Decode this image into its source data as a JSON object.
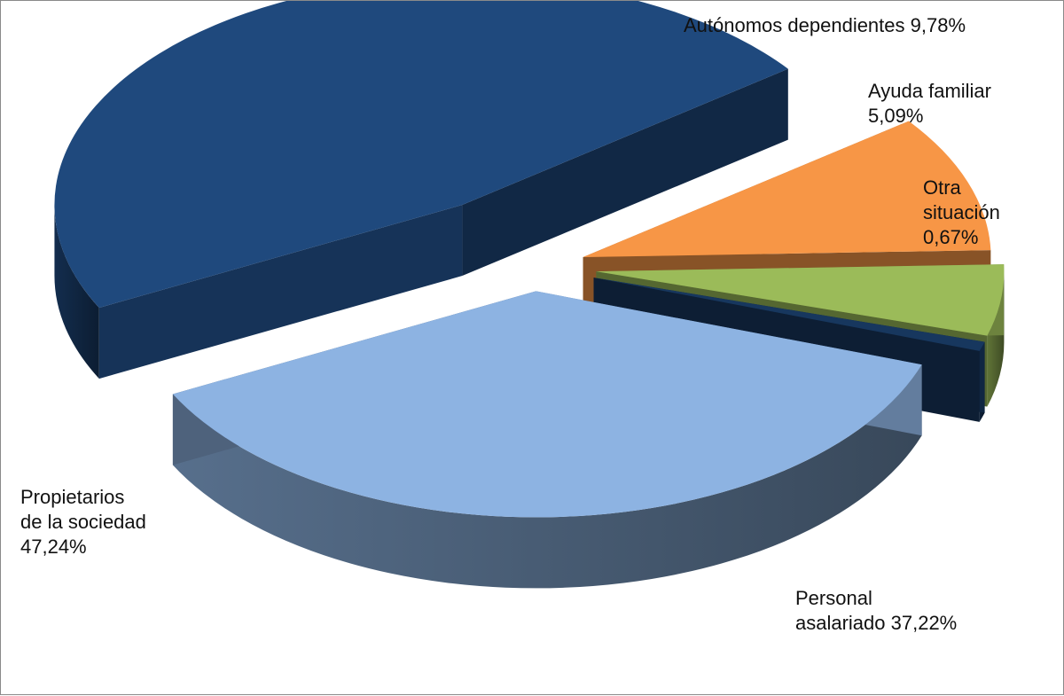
{
  "chart_data": {
    "type": "pie",
    "title": "",
    "legend": "none",
    "slices": [
      {
        "key": "autonomos",
        "label": "Autónomos dependientes 9,78%",
        "value": 9.78,
        "color": "#f79646"
      },
      {
        "key": "ayuda",
        "label": "Ayuda familiar\n5,09%",
        "value": 5.09,
        "color": "#9bbb59"
      },
      {
        "key": "otra",
        "label": "Otra\nsituación\n0,67%",
        "value": 0.67,
        "color": "#17375e"
      },
      {
        "key": "personal",
        "label": "Personal\nasalariado 37,22%",
        "value": 37.22,
        "color": "#8db3e2"
      },
      {
        "key": "propietarios",
        "label": "Propietarios\nde la sociedad\n47,24%",
        "value": 47.24,
        "color": "#1f497d"
      }
    ]
  }
}
